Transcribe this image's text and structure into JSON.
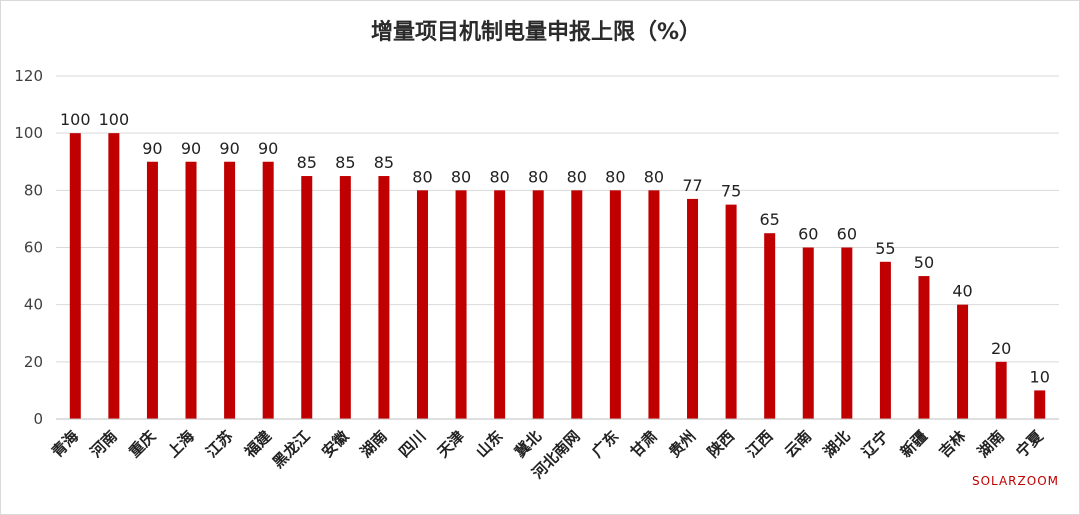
{
  "chart_data": {
    "type": "bar",
    "title": "增量项目机制电量申报上限（%）",
    "xlabel": "",
    "ylabel": "",
    "ylim": [
      0,
      120
    ],
    "yticks": [
      0,
      20,
      40,
      60,
      80,
      100,
      120
    ],
    "grid": true,
    "legend": "none",
    "bar_color": "#c00000",
    "categories": [
      "青海",
      "河南",
      "重庆",
      "上海",
      "江苏",
      "福建",
      "黑龙江",
      "安徽",
      "湖南",
      "四川",
      "天津",
      "山东",
      "冀北",
      "河北南网",
      "广东",
      "甘肃",
      "贵州",
      "陕西",
      "江西",
      "云南",
      "湖北",
      "辽宁",
      "新疆",
      "吉林",
      "湖南",
      "宁夏"
    ],
    "values": [
      100,
      100,
      90,
      90,
      90,
      90,
      85,
      85,
      85,
      80,
      80,
      80,
      80,
      80,
      80,
      80,
      77,
      75,
      65,
      60,
      60,
      55,
      50,
      40,
      20,
      10
    ]
  },
  "brand": "SOLARZOOM"
}
